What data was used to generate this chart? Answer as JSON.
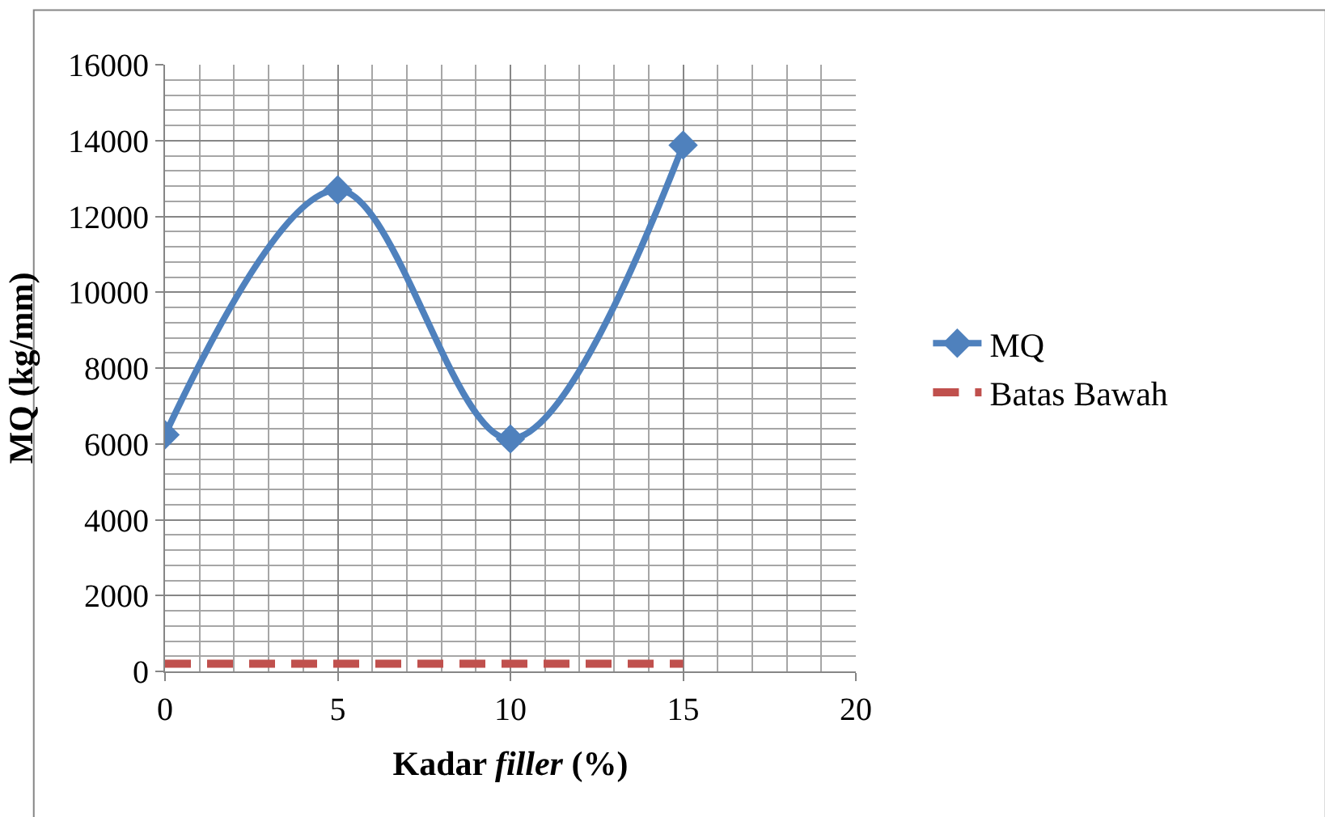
{
  "chart_data": {
    "type": "line",
    "xlabel": "Kadar filler (%)",
    "ylabel": "MQ (kg/mm)",
    "x": [
      0,
      5,
      10,
      15
    ],
    "series": [
      {
        "name": "MQ",
        "color": "#4f81bd",
        "values": [
          6240,
          12700,
          6130,
          13880
        ],
        "marker": "diamond",
        "line_style": "solid"
      },
      {
        "name": "Batas Bawah",
        "color": "#c0504d",
        "values": [
          200,
          200,
          200,
          200
        ],
        "marker": "none",
        "line_style": "dashed"
      }
    ],
    "xlim": [
      0,
      20
    ],
    "xticks": [
      0,
      5,
      10,
      15,
      20
    ],
    "ylim": [
      0,
      16000
    ],
    "yticks": [
      0,
      2000,
      4000,
      6000,
      8000,
      10000,
      12000,
      14000,
      16000
    ],
    "grid": true,
    "legend": "right"
  }
}
